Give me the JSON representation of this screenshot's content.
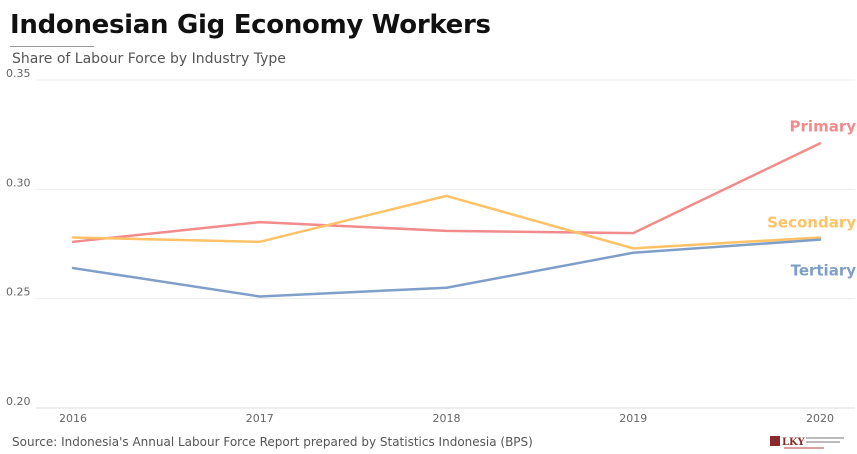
{
  "header": {
    "title": "Indonesian Gig Economy Workers",
    "subtitle": "Share of Labour Force by Industry Type"
  },
  "footer": {
    "source": "Source: Indonesia's Annual Labour Force Report prepared by Statistics Indonesia (BPS)",
    "logo_text": "LKY"
  },
  "chart_data": {
    "type": "line",
    "title": "Indonesian Gig Economy Workers",
    "subtitle": "Share of Labour Force by Industry Type",
    "x": [
      2016,
      2017,
      2018,
      2019,
      2020
    ],
    "x_tick_labels": [
      "2016",
      "2017",
      "2018",
      "2019",
      "2020"
    ],
    "ylim": [
      0.2,
      0.35
    ],
    "y_ticks": [
      0.2,
      0.25,
      0.3,
      0.35
    ],
    "y_tick_labels": [
      "0.20",
      "0.25",
      "0.30",
      "0.35"
    ],
    "grid": true,
    "legend": "inline labels at line ends (right)",
    "series": [
      {
        "name": "Primary",
        "color": "#f28b8b",
        "values": [
          0.276,
          0.285,
          0.281,
          0.28,
          0.321
        ]
      },
      {
        "name": "Secondary",
        "color": "#ffc266",
        "values": [
          0.278,
          0.276,
          0.297,
          0.273,
          0.278
        ]
      },
      {
        "name": "Tertiary",
        "color": "#7f9fc9",
        "values": [
          0.264,
          0.251,
          0.255,
          0.271,
          0.277
        ]
      }
    ]
  }
}
